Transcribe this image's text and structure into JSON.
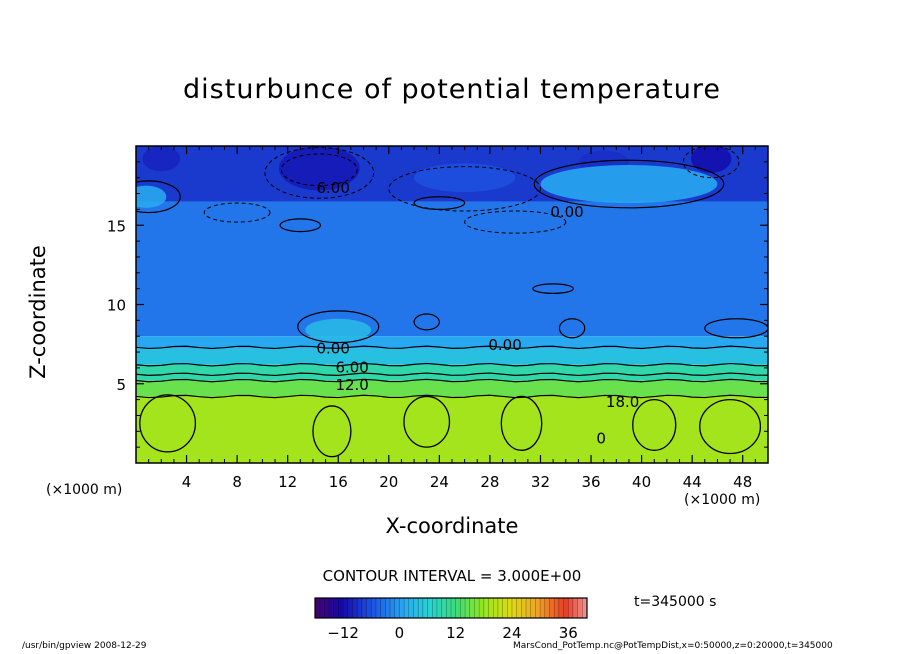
{
  "chart_data": {
    "type": "heatmap",
    "title": "disturbunce of potential temperature",
    "xlabel": "X-coordinate",
    "ylabel": "Z-coordinate",
    "x_unit": "(×1000 m)",
    "xlim": [
      0,
      50
    ],
    "ylim": [
      0,
      20
    ],
    "xticks": [
      4,
      8,
      12,
      16,
      20,
      24,
      28,
      32,
      36,
      40,
      44,
      48
    ],
    "yticks": [
      5,
      10,
      15
    ],
    "contour_interval_label": "CONTOUR INTERVAL = 3.000E+00",
    "contour_labels": [
      {
        "text": "6.00",
        "x": 15.6,
        "z": 17.4
      },
      {
        "text": "0.00",
        "x": 34.1,
        "z": 15.9
      },
      {
        "text": "0.00",
        "x": 15.6,
        "z": 7.3
      },
      {
        "text": "0.00",
        "x": 29.2,
        "z": 7.5
      },
      {
        "text": "6.00",
        "x": 17.1,
        "z": 6.1
      },
      {
        "text": "12.0",
        "x": 17.1,
        "z": 5.0
      },
      {
        "text": "18.0",
        "x": 38.5,
        "z": 3.9
      },
      {
        "text": "0",
        "x": 36.8,
        "z": 1.6
      }
    ],
    "field_bands": [
      {
        "z_from": 16.5,
        "z_to": 20,
        "value": -8
      },
      {
        "z_from": 8.0,
        "z_to": 16.5,
        "value": -3
      },
      {
        "z_from": 7.2,
        "z_to": 8.0,
        "value": 1
      },
      {
        "z_from": 6.2,
        "z_to": 7.2,
        "value": 4
      },
      {
        "z_from": 5.2,
        "z_to": 6.2,
        "value": 9
      },
      {
        "z_from": 4.2,
        "z_to": 5.2,
        "value": 15
      },
      {
        "z_from": 0,
        "z_to": 4.2,
        "value": 19
      }
    ],
    "colorbar": {
      "range": [
        -18,
        40
      ],
      "ticks": [
        -12,
        0,
        12,
        24,
        36
      ]
    },
    "time_label": "t=345000 s"
  },
  "footer": {
    "left": "/usr/bin/gpview   2008-12-29",
    "right": "MarsCond_PotTemp.nc@PotTempDist,x=0:50000,z=0:20000,t=345000"
  }
}
